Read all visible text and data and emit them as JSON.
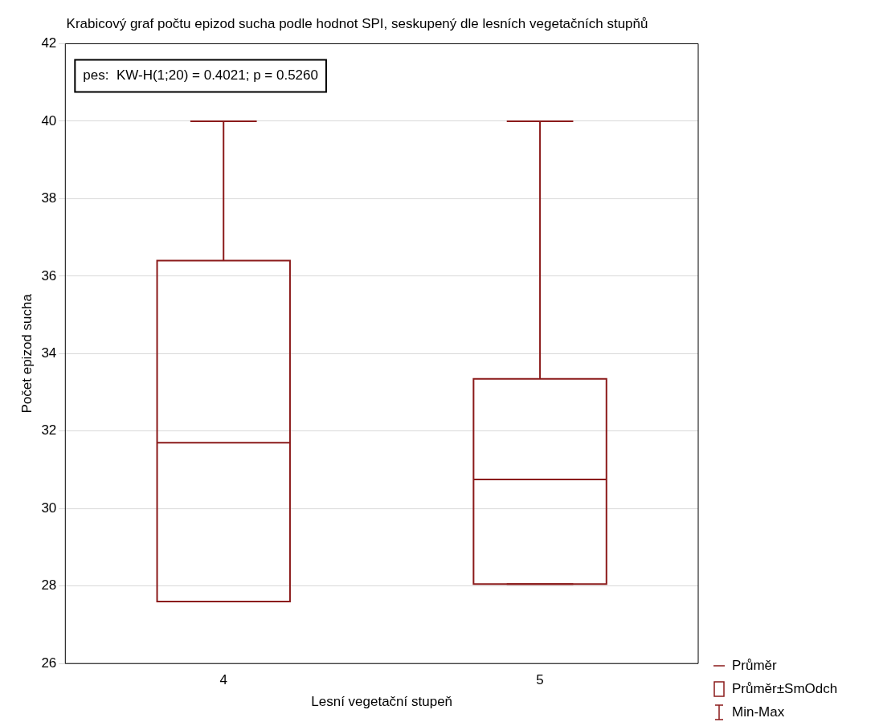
{
  "chart_data": {
    "type": "box",
    "title": "Krabicový graf počtu epizod sucha podle hodnot SPI, seskupený dle lesních vegetačních stupňů",
    "xlabel": "Lesní vegetační stupeň",
    "ylabel": "Počet epizod sucha",
    "categories": [
      "4",
      "5"
    ],
    "series": [
      {
        "color": "#8b1a1a",
        "boxes": [
          {
            "low": 27.6,
            "q1": 27.6,
            "median": 31.7,
            "q3": 36.4,
            "high": 40
          },
          {
            "low": 28.05,
            "q1": 28.05,
            "median": 30.75,
            "q3": 33.35,
            "high": 40
          }
        ]
      }
    ],
    "ylim": [
      26,
      42
    ],
    "yticks": [
      26,
      28,
      30,
      32,
      34,
      36,
      38,
      40,
      42
    ],
    "grid": "y",
    "annotations": [
      "pes:  KW-H(1;20) = 0.4021; p = 0.5260",
      "Průměr",
      "Průměr±SmOdch",
      "Min-Max"
    ]
  }
}
